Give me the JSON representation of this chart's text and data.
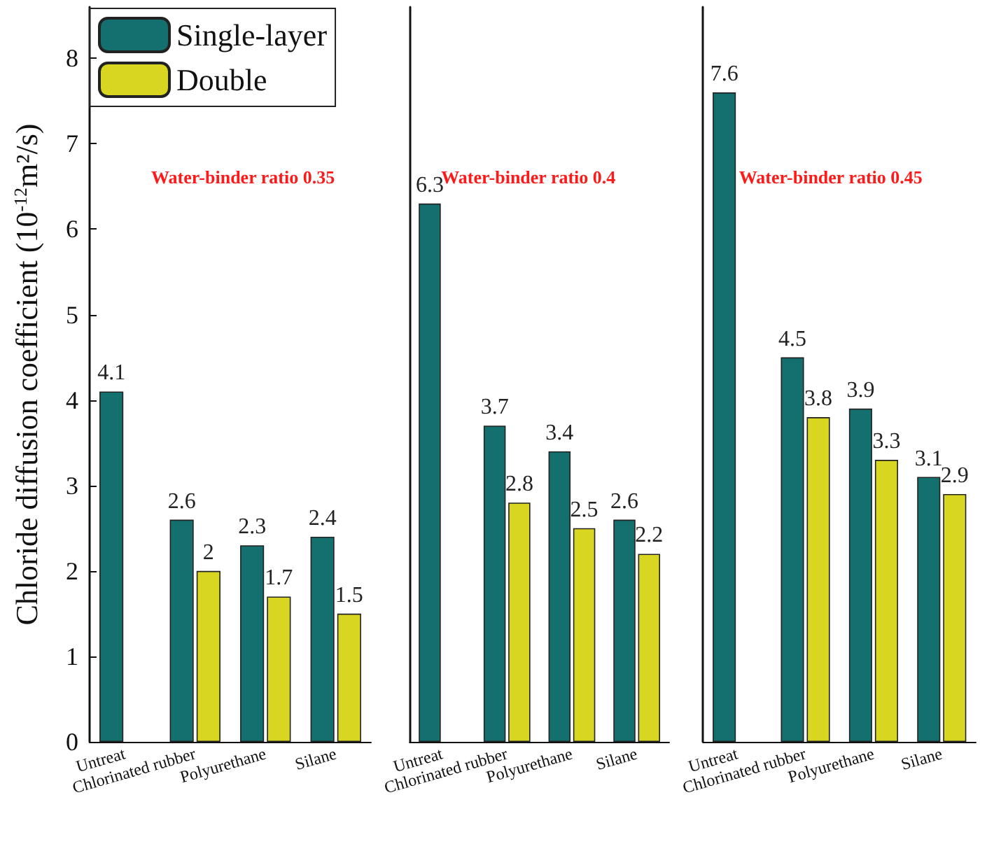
{
  "chart_data": [
    {
      "type": "bar",
      "ylabel": "Chloride diffusion coefficient (10$^{-12}$m²/s)",
      "categories": [
        "Untreat",
        "Chlorinated rubber",
        "Polyurethane",
        "Silane"
      ],
      "series": [
        {
          "name": "Single-layer",
          "color": "#14706e",
          "values": [
            4.1,
            2.6,
            2.3,
            2.4
          ]
        },
        {
          "name": "Double",
          "color": "#d9d621",
          "values": [
            null,
            2,
            1.7,
            1.5
          ]
        }
      ],
      "ylim": [
        0,
        8.6
      ],
      "yticks": [
        0,
        1,
        2,
        3,
        4,
        5,
        6,
        7,
        8
      ],
      "data_labels": true,
      "legend": "top left",
      "annotations": [
        "Water-binder ratio 0.35"
      ]
    },
    {
      "type": "bar",
      "categories": [
        "Untreat",
        "Chlorinated rubber",
        "Polyurethane",
        "Silane"
      ],
      "series": [
        {
          "color": "#14706e",
          "values": [
            6.3,
            3.7,
            3.4,
            2.6
          ]
        },
        {
          "color": "#d9d621",
          "values": [
            null,
            2.8,
            2.5,
            2.2
          ]
        }
      ],
      "ylim": [
        0,
        8.6
      ],
      "yticks": [
        0,
        1,
        2,
        3,
        4,
        5,
        6,
        7,
        8
      ],
      "data_labels": true,
      "tick_labels": "x",
      "annotations": [
        "Water-binder ratio 0.4"
      ]
    },
    {
      "type": "bar",
      "categories": [
        "Untreat",
        "Chlorinated rubber",
        "Polyurethane",
        "Silane"
      ],
      "series": [
        {
          "color": "#14706e",
          "values": [
            7.6,
            4.5,
            3.9,
            3.1
          ]
        },
        {
          "color": "#d9d621",
          "values": [
            null,
            3.8,
            3.3,
            2.9
          ]
        }
      ],
      "ylim": [
        0,
        8.6
      ],
      "yticks": [
        0,
        1,
        2,
        3,
        4,
        5,
        6,
        7,
        8
      ],
      "data_labels": true,
      "tick_labels": "x",
      "annotations": [
        "Water-binder ratio 0.45"
      ]
    }
  ]
}
